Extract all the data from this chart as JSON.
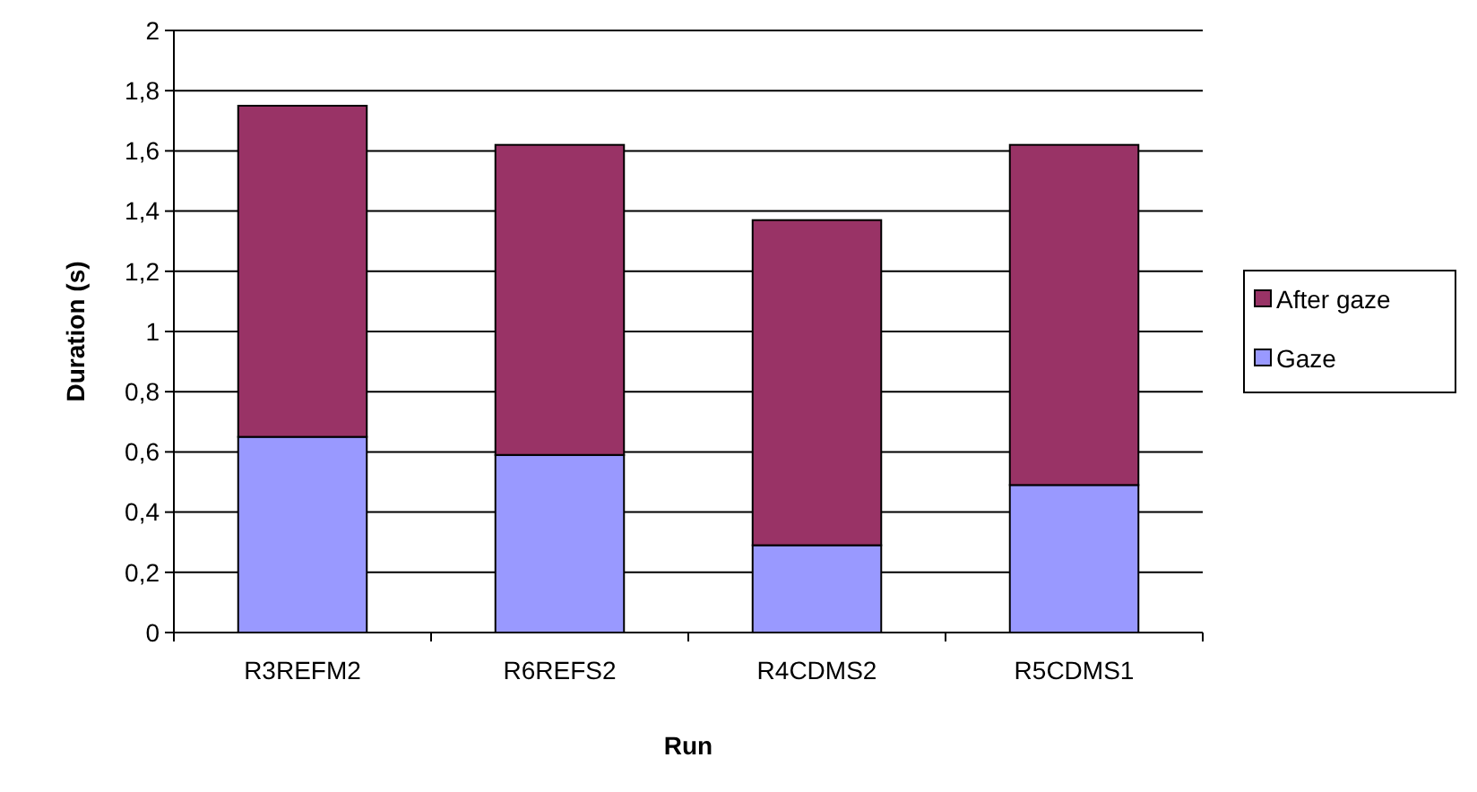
{
  "chart_data": {
    "type": "bar",
    "stacked": true,
    "xlabel": "Run",
    "ylabel": "Duration (s)",
    "categories": [
      "R3REFM2",
      "R6REFS2",
      "R4CDMS2",
      "R5CDMS1"
    ],
    "series": [
      {
        "name": "Gaze",
        "color": "#9999ff",
        "values": [
          0.65,
          0.59,
          0.29,
          0.49
        ]
      },
      {
        "name": "After gaze",
        "color": "#993366",
        "values": [
          1.1,
          1.03,
          1.08,
          1.13
        ]
      }
    ],
    "ylim": [
      0,
      2
    ],
    "yticks": [
      0,
      {
        "value": 0.2,
        "label": "0,2"
      },
      {
        "value": 0.4,
        "label": "0,4"
      },
      {
        "value": 0.6,
        "label": "0,6"
      },
      {
        "value": 0.8,
        "label": "0,8"
      },
      1,
      {
        "value": 1.2,
        "label": "1,2"
      },
      {
        "value": 1.4,
        "label": "1,4"
      },
      {
        "value": 1.6,
        "label": "1,6"
      },
      {
        "value": 1.8,
        "label": "1,8"
      },
      2
    ],
    "grid": "y",
    "legend": "right"
  }
}
